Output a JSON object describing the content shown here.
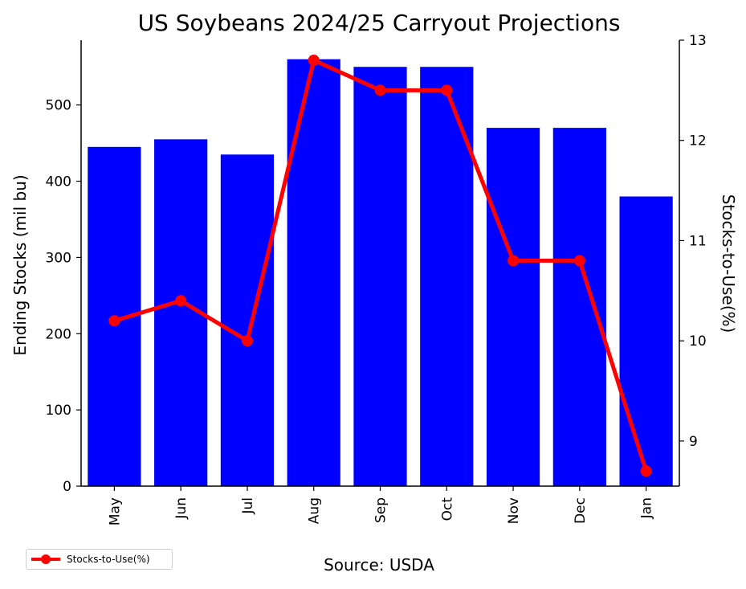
{
  "chart_data": {
    "type": "bar",
    "title": "US Soybeans 2024/25 Carryout Projections",
    "xlabel": "Source: USDA",
    "ylabel": "Ending Stocks (mil bu)",
    "y2label": "Stocks-to-Use(%)",
    "categories": [
      "May",
      "Jun",
      "Jul",
      "Aug",
      "Sep",
      "Oct",
      "Nov",
      "Dec",
      "Jan"
    ],
    "series": [
      {
        "type": "bar",
        "axis": "left",
        "color": "#0000ff",
        "values": [
          445,
          455,
          435,
          560,
          550,
          550,
          470,
          470,
          380
        ]
      },
      {
        "type": "line",
        "axis": "right",
        "name": "Stocks-to-Use(%)",
        "color": "#ff0000",
        "values": [
          10.2,
          10.4,
          10.0,
          12.8,
          12.5,
          12.5,
          10.8,
          10.8,
          8.7
        ]
      }
    ],
    "ylim": [
      0,
      585
    ],
    "yticks": [
      0,
      100,
      200,
      300,
      400,
      500
    ],
    "y2lim": [
      8.55,
      13.0
    ],
    "y2ticks": [
      9,
      10,
      11,
      12,
      13
    ],
    "grid": false,
    "legend_position": "bottom-left"
  }
}
